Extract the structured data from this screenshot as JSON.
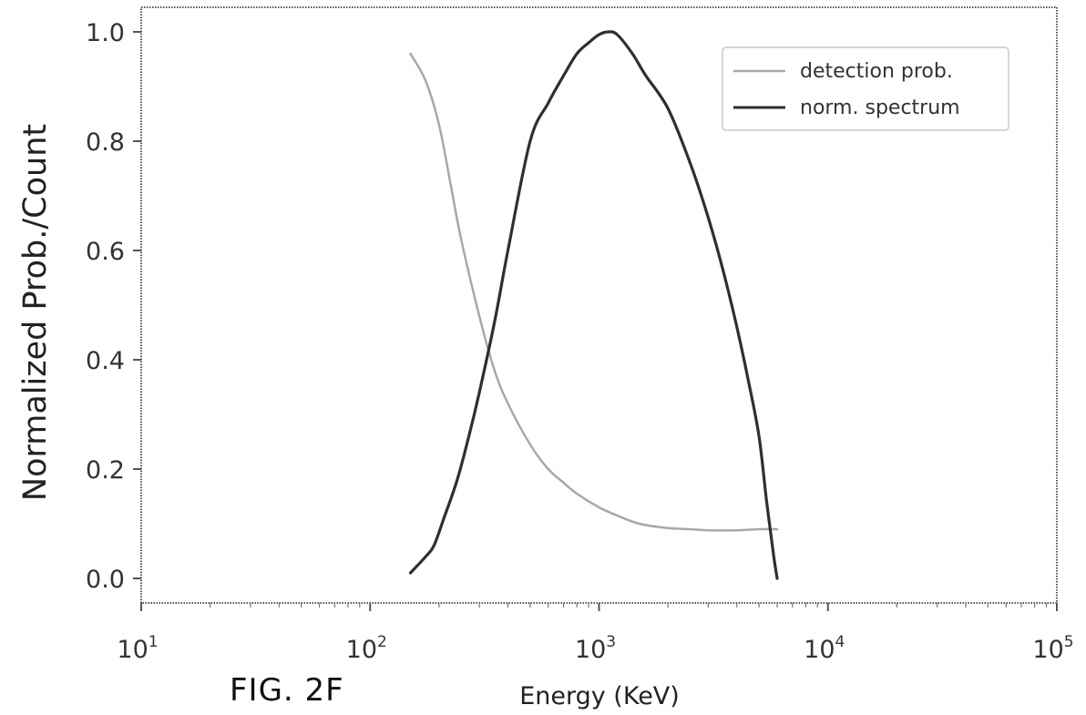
{
  "figure_label": "FIG. 2F",
  "colors": {
    "detection": "#a8a8a8",
    "spectrum": "#2f2f2f",
    "axis": "#555555"
  },
  "chart_data": {
    "type": "line",
    "title": "",
    "xlabel": "Energy (KeV)",
    "ylabel": "Normalized Prob./Count",
    "xscale": "log",
    "xlim": [
      10,
      100000
    ],
    "ylim": [
      -0.045,
      1.045
    ],
    "x_ticks": [
      {
        "value": 10,
        "base": "10",
        "exp": "1"
      },
      {
        "value": 100,
        "base": "10",
        "exp": "2"
      },
      {
        "value": 1000,
        "base": "10",
        "exp": "3"
      },
      {
        "value": 10000,
        "base": "10",
        "exp": "4"
      },
      {
        "value": 100000,
        "base": "10",
        "exp": "5"
      }
    ],
    "y_ticks": [
      {
        "value": 0.0,
        "label": "0.0"
      },
      {
        "value": 0.2,
        "label": "0.2"
      },
      {
        "value": 0.4,
        "label": "0.4"
      },
      {
        "value": 0.6,
        "label": "0.6"
      },
      {
        "value": 0.8,
        "label": "0.8"
      },
      {
        "value": 1.0,
        "label": "1.0"
      }
    ],
    "legend_position": "top-right",
    "grid": false,
    "series": [
      {
        "name": "detection prob.",
        "x": [
          150,
          175,
          200,
          225,
          250,
          300,
          350,
          400,
          500,
          600,
          700,
          800,
          1000,
          1200,
          1500,
          2000,
          2500,
          3000,
          4000,
          5000,
          6000
        ],
        "y": [
          0.96,
          0.91,
          0.83,
          0.72,
          0.62,
          0.48,
          0.38,
          0.32,
          0.245,
          0.2,
          0.175,
          0.155,
          0.13,
          0.115,
          0.1,
          0.092,
          0.09,
          0.088,
          0.088,
          0.09,
          0.09
        ]
      },
      {
        "name": "norm. spectrum",
        "x": [
          150,
          175,
          190,
          210,
          240,
          270,
          300,
          350,
          400,
          500,
          600,
          700,
          800,
          900,
          1000,
          1100,
          1200,
          1400,
          1600,
          2000,
          2500,
          3000,
          3500,
          4000,
          4500,
          5000,
          5400,
          5800,
          6000
        ],
        "y": [
          0.01,
          0.04,
          0.06,
          0.11,
          0.18,
          0.26,
          0.34,
          0.47,
          0.6,
          0.8,
          0.87,
          0.92,
          0.96,
          0.98,
          0.995,
          1.0,
          0.995,
          0.96,
          0.92,
          0.86,
          0.76,
          0.66,
          0.56,
          0.46,
          0.36,
          0.26,
          0.14,
          0.04,
          0.0
        ]
      }
    ]
  }
}
